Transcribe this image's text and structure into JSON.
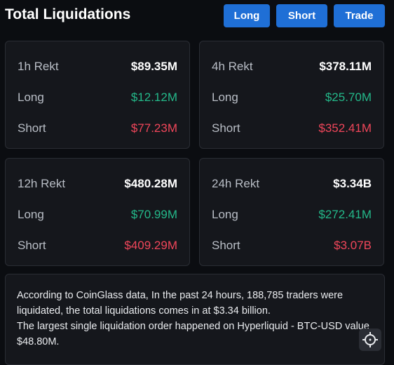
{
  "header": {
    "title": "Total Liquidations",
    "buttons": [
      "Long",
      "Short",
      "Trade"
    ]
  },
  "cards": [
    {
      "label": "1h Rekt",
      "total": "$89.35M",
      "rows": [
        {
          "label": "Long",
          "value": "$12.12M"
        },
        {
          "label": "Short",
          "value": "$77.23M"
        }
      ]
    },
    {
      "label": "4h Rekt",
      "total": "$378.11M",
      "rows": [
        {
          "label": "Long",
          "value": "$25.70M"
        },
        {
          "label": "Short",
          "value": "$352.41M"
        }
      ]
    },
    {
      "label": "12h Rekt",
      "total": "$480.28M",
      "rows": [
        {
          "label": "Long",
          "value": "$70.99M"
        },
        {
          "label": "Short",
          "value": "$409.29M"
        }
      ]
    },
    {
      "label": "24h Rekt",
      "total": "$3.34B",
      "rows": [
        {
          "label": "Long",
          "value": "$272.41M"
        },
        {
          "label": "Short",
          "value": "$3.07B"
        }
      ]
    }
  ],
  "summary": {
    "lines": [
      "According to CoinGlass data, In the past 24 hours, 188,785 traders were liquidated, the total liquidations comes in at $3.34 billion.",
      "The largest single liquidation order happened on Hyperliquid - BTC-USD value $48.80M."
    ]
  }
}
